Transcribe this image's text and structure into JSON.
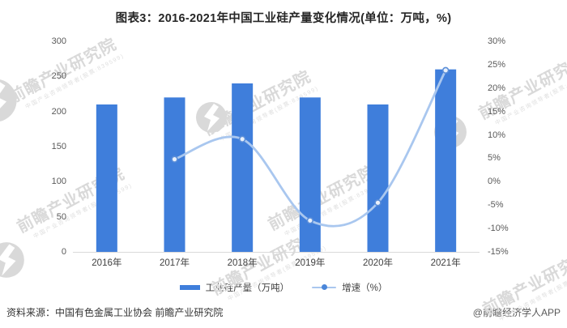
{
  "title": "图表3：2016-2021年中国工业硅产量变化情况(单位：万吨，%)",
  "chart_data": {
    "type": "combo_bar_line",
    "categories": [
      "2016年",
      "2017年",
      "2018年",
      "2019年",
      "2020年",
      "2021年"
    ],
    "series": [
      {
        "name": "工业硅产量（万吨）",
        "type": "bar",
        "axis": "left",
        "color": "#3f7edb",
        "values": [
          210,
          220,
          240,
          220,
          210,
          260
        ]
      },
      {
        "name": "增速（%）",
        "type": "line",
        "axis": "right",
        "color": "#a9c7ef",
        "marker_stroke": "#5b8ed8",
        "marker_fill": "#eaf1fb",
        "values": [
          null,
          4.8,
          9.1,
          -8.3,
          -4.5,
          23.8
        ]
      }
    ],
    "left_axis": {
      "min": 0,
      "max": 300,
      "step": 50,
      "tick_labels": [
        "300",
        "250",
        "200",
        "150",
        "100",
        "50",
        "0"
      ]
    },
    "right_axis": {
      "min": -15,
      "max": 30,
      "step": 5,
      "tick_labels": [
        "30%",
        "25%",
        "20%",
        "15%",
        "10%",
        "5%",
        "0%",
        "-5%",
        "-10%",
        "-15%"
      ]
    },
    "grid": false,
    "baseline_color": "#d9d9d9",
    "legend_position": "bottom"
  },
  "legend": {
    "items": [
      {
        "label": "工业硅产量（万吨）",
        "swatch": "bar",
        "color": "#3f7edb"
      },
      {
        "label": "增速（%）",
        "swatch": "line-dot",
        "line_color": "#a9c7ef",
        "dot_color": "#4a86d9"
      }
    ]
  },
  "footer": {
    "source": "资料来源：中国有色金属工业协会 前瞻产业研究院",
    "credit": "@前瞻经济学人APP"
  },
  "watermark": {
    "text": "前瞻产业研究院",
    "subtext": "中国产业咨询领导者(股票:839599)",
    "logo_color": "#d9d9d9"
  }
}
